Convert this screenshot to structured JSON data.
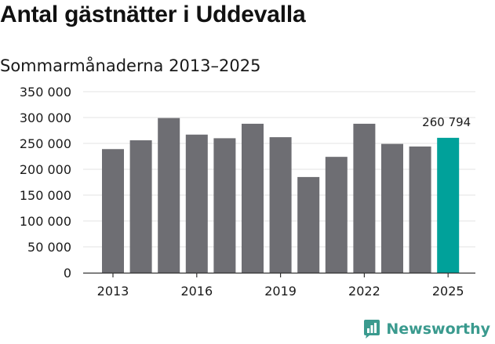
{
  "title": "Antal gästnätter i Uddevalla",
  "subtitle": "Sommarmånaderna 2013–2025",
  "brand": {
    "name": "Newsworthy",
    "icon": "newsworthy-logo-icon"
  },
  "colors": {
    "bar": "#6e6e73",
    "highlight": "#00a19a",
    "grid": "#e3e3e3",
    "axis": "#333333",
    "brand": "#3a9a8e"
  },
  "chart_data": {
    "type": "bar",
    "x": [
      2013,
      2014,
      2015,
      2016,
      2017,
      2018,
      2019,
      2020,
      2021,
      2022,
      2023,
      2024,
      2025
    ],
    "values": [
      239000,
      256000,
      299000,
      267000,
      260000,
      288000,
      262000,
      185000,
      224000,
      288000,
      249000,
      244000,
      260794
    ],
    "highlight_index": 12,
    "data_label": "260 794",
    "ylim": [
      0,
      350000
    ],
    "yticks": [
      "0",
      "50 000",
      "100 000",
      "150 000",
      "200 000",
      "250 000",
      "300 000",
      "350 000"
    ],
    "ytick_values": [
      0,
      50000,
      100000,
      150000,
      200000,
      250000,
      300000,
      350000
    ],
    "xticks": [
      "2013",
      "2016",
      "2019",
      "2022",
      "2025"
    ],
    "xtick_values": [
      2013,
      2016,
      2019,
      2022,
      2025
    ],
    "grid": true
  }
}
